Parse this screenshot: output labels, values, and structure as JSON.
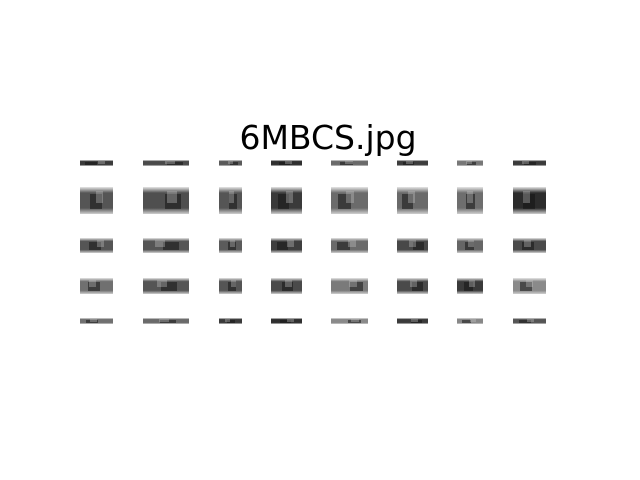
{
  "figure": {
    "title": "6MBCS.jpg"
  },
  "tiles": {
    "rows": 5,
    "cols": 8,
    "shades": [
      [
        "#3a3a3a",
        "#4a4a4a",
        "#5a5a5a",
        "#2f2f2f",
        "#6a6a6a",
        "#3c3c3c",
        "#777777",
        "#3a3a3a"
      ],
      [
        "#555555",
        "#4f4f4f",
        "#555555",
        "#3a3a3a",
        "#6b6b6b",
        "#6a6a6a",
        "#6e6e6e",
        "#2c2c2c"
      ],
      [
        "#555555",
        "#555555",
        "#5b5b5b",
        "#3e3e3e",
        "#6a6a6a",
        "#484848",
        "#666666",
        "#4a4a4a"
      ],
      [
        "#707070",
        "#555555",
        "#555555",
        "#4a4a4a",
        "#7a7a7a",
        "#4a4a4a",
        "#3a3a3a",
        "#8a8a8a"
      ],
      [
        "#707070",
        "#6a6a6a",
        "#3a3a3a",
        "#2f2f2f",
        "#8a8a8a",
        "#3a3a3a",
        "#888888",
        "#555555"
      ]
    ]
  }
}
